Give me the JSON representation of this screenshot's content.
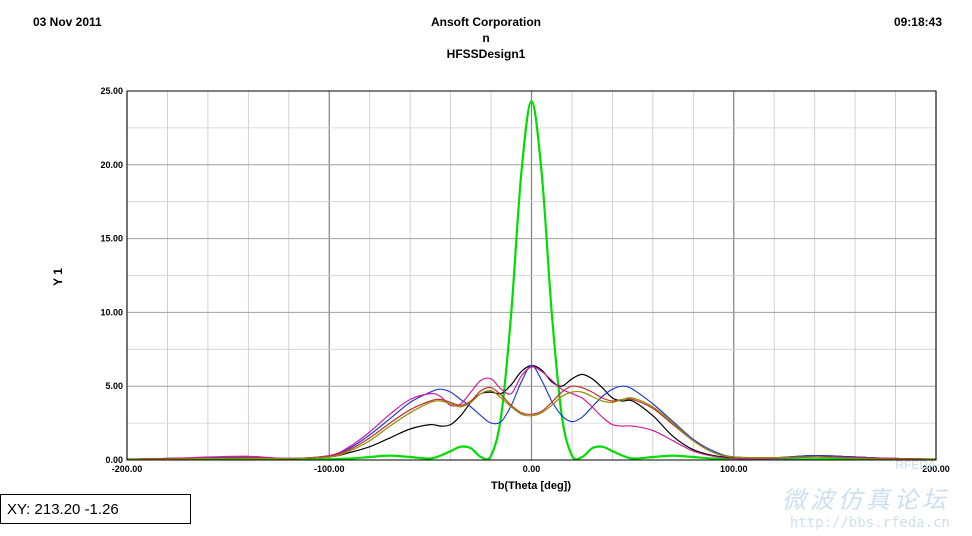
{
  "header": {
    "date": "03 Nov 2011",
    "company": "Ansoft Corporation",
    "subtitle": "n",
    "design": "HFSSDesign1",
    "time": "09:18:43"
  },
  "readout": "XY: 213.20 -1.26",
  "watermark": {
    "cn": "微波仿真论坛",
    "url": "http://bbs.rfeda.cn",
    "logo": "RFEDA"
  },
  "colors": {
    "plot_bg": "#ffffff",
    "grid": "#a0a0a0",
    "axis": "#000000"
  },
  "chart_data": {
    "type": "line",
    "xlabel": "Tb(Theta [deg])",
    "ylabel": "Y 1",
    "xlim": [
      -200,
      200
    ],
    "ylim": [
      0,
      25
    ],
    "xticks": [
      -200,
      -100,
      0,
      100,
      200
    ],
    "xtick_labels": [
      "-200.00",
      "-100.00",
      "0.00",
      "100.00",
      "200.00"
    ],
    "yticks": [
      0,
      5,
      10,
      15,
      20,
      25
    ],
    "ytick_labels": [
      "0.00",
      "5.00",
      "10.00",
      "15.00",
      "20.00",
      "25.00"
    ],
    "grid": true,
    "x": [
      -200,
      -180,
      -160,
      -140,
      -120,
      -100,
      -90,
      -80,
      -70,
      -60,
      -50,
      -45,
      -40,
      -35,
      -30,
      -25,
      -20,
      -15,
      -10,
      -5,
      0,
      5,
      10,
      15,
      20,
      25,
      30,
      35,
      40,
      45,
      50,
      60,
      70,
      80,
      90,
      100,
      120,
      140,
      160,
      180,
      200
    ],
    "series": [
      {
        "color": "#00dd00",
        "width": 2.2,
        "values": [
          0.05,
          0.05,
          0.08,
          0.05,
          0.05,
          0.05,
          0.1,
          0.2,
          0.3,
          0.2,
          0.1,
          0.3,
          0.6,
          0.9,
          0.8,
          0.2,
          0.3,
          3.0,
          10.0,
          19.5,
          24.3,
          19.5,
          10.0,
          3.0,
          0.3,
          0.2,
          0.8,
          0.9,
          0.6,
          0.3,
          0.1,
          0.2,
          0.3,
          0.2,
          0.1,
          0.05,
          0.05,
          0.05,
          0.08,
          0.05,
          0.05
        ]
      },
      {
        "color": "#000000",
        "width": 1.2,
        "values": [
          0.05,
          0.1,
          0.15,
          0.2,
          0.1,
          0.2,
          0.5,
          0.9,
          1.5,
          2.1,
          2.4,
          2.3,
          2.4,
          3.0,
          3.9,
          4.5,
          4.6,
          4.5,
          5.1,
          6.0,
          6.4,
          6.1,
          5.3,
          5.0,
          5.5,
          5.8,
          5.5,
          4.9,
          4.2,
          4.0,
          4.0,
          3.0,
          1.6,
          0.7,
          0.3,
          0.15,
          0.15,
          0.3,
          0.2,
          0.1,
          0.05
        ]
      },
      {
        "color": "#1f3fcf",
        "width": 1.2,
        "values": [
          0.05,
          0.1,
          0.15,
          0.2,
          0.1,
          0.3,
          0.8,
          1.7,
          2.8,
          3.9,
          4.6,
          4.8,
          4.6,
          4.1,
          3.6,
          3.0,
          2.5,
          2.6,
          3.7,
          5.3,
          6.4,
          5.4,
          4.0,
          3.0,
          2.6,
          2.9,
          3.6,
          4.3,
          4.8,
          5.0,
          4.8,
          3.8,
          2.6,
          1.4,
          0.6,
          0.2,
          0.15,
          0.3,
          0.2,
          0.1,
          0.05
        ]
      },
      {
        "color": "#d01f9f",
        "width": 1.2,
        "values": [
          0.05,
          0.1,
          0.2,
          0.25,
          0.1,
          0.3,
          0.9,
          1.9,
          3.1,
          4.1,
          4.5,
          4.3,
          3.7,
          3.8,
          4.6,
          5.4,
          5.5,
          4.8,
          4.5,
          5.7,
          6.3,
          6.0,
          5.4,
          4.8,
          4.5,
          4.2,
          3.6,
          2.9,
          2.4,
          2.3,
          2.3,
          2.0,
          1.3,
          0.6,
          0.25,
          0.1,
          0.1,
          0.2,
          0.15,
          0.1,
          0.05
        ]
      },
      {
        "color": "#c03030",
        "width": 1.2,
        "values": [
          0.05,
          0.1,
          0.1,
          0.15,
          0.1,
          0.25,
          0.7,
          1.5,
          2.5,
          3.4,
          4.0,
          4.1,
          3.9,
          3.7,
          4.0,
          4.7,
          4.9,
          4.4,
          3.7,
          3.2,
          3.1,
          3.3,
          3.9,
          4.6,
          5.0,
          4.9,
          4.6,
          4.2,
          4.0,
          4.1,
          4.1,
          3.5,
          2.4,
          1.3,
          0.5,
          0.2,
          0.15,
          0.2,
          0.15,
          0.1,
          0.05
        ]
      },
      {
        "color": "#909000",
        "width": 1.2,
        "values": [
          0.05,
          0.05,
          0.1,
          0.1,
          0.1,
          0.2,
          0.6,
          1.3,
          2.3,
          3.2,
          3.9,
          4.0,
          3.8,
          3.6,
          3.9,
          4.5,
          4.7,
          4.2,
          3.6,
          3.1,
          3.0,
          3.2,
          3.7,
          4.3,
          4.6,
          4.6,
          4.3,
          4.0,
          3.9,
          4.1,
          4.2,
          3.6,
          2.5,
          1.3,
          0.5,
          0.2,
          0.15,
          0.2,
          0.1,
          0.05,
          0.05
        ]
      }
    ]
  }
}
